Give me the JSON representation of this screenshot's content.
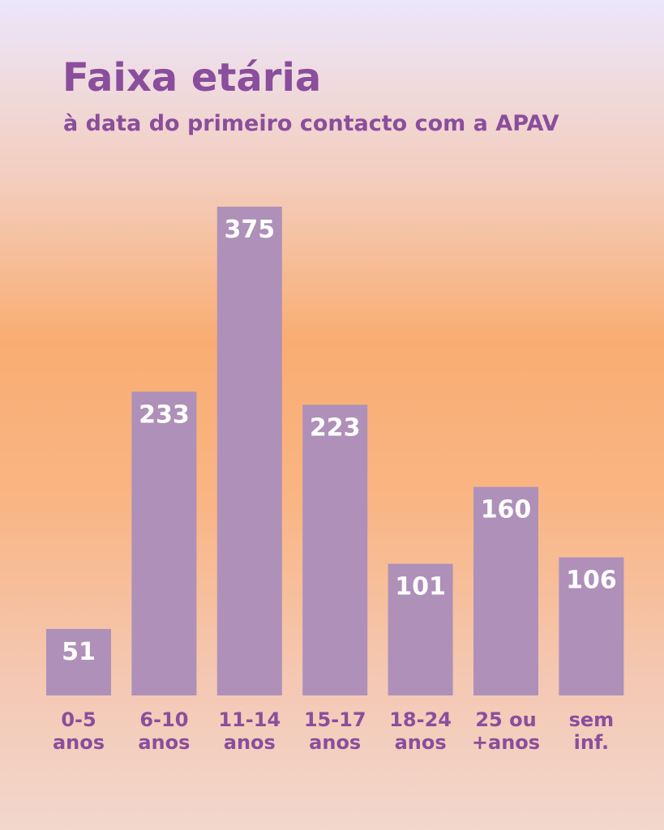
{
  "title": "Faixa etária",
  "subtitle": "à data do primeiro contacto com a APAV",
  "colors": {
    "bar": "#ae90b9",
    "text": "#8a4e9c",
    "value_label": "#ffffff"
  },
  "chart_data": {
    "type": "bar",
    "title": "Faixa etária",
    "subtitle": "à data do primeiro contacto com a APAV",
    "categories": [
      [
        "0-5",
        "anos"
      ],
      [
        "6-10",
        "anos"
      ],
      [
        "11-14",
        "anos"
      ],
      [
        "15-17",
        "anos"
      ],
      [
        "18-24",
        "anos"
      ],
      [
        "25 ou",
        "+anos"
      ],
      [
        "sem",
        "inf."
      ]
    ],
    "values": [
      51,
      233,
      375,
      223,
      101,
      160,
      106
    ],
    "data_labels": true,
    "ylim": [
      0,
      375
    ],
    "grid": false,
    "legend": "none"
  }
}
